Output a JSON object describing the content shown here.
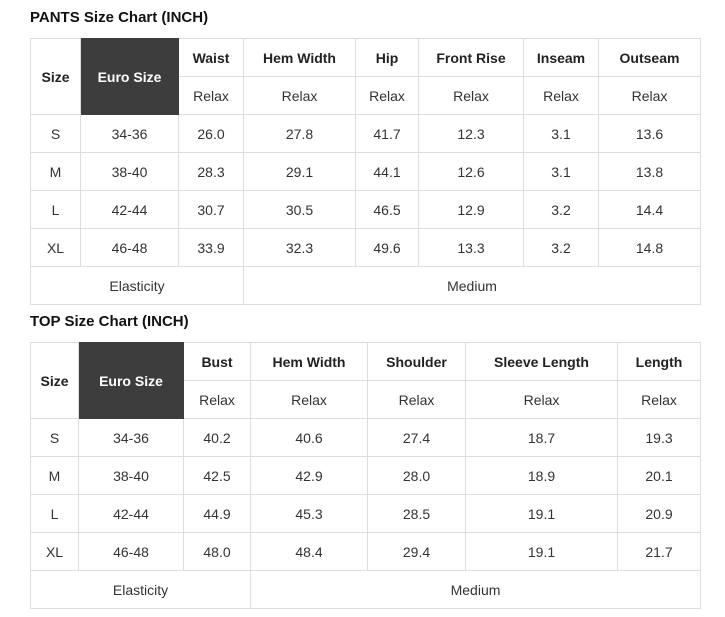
{
  "colors": {
    "accent_dark": "#3d3d3d",
    "accent_text": "#ffffff",
    "border": "#dddddd",
    "text": "#333333",
    "header_text": "#222222",
    "title_text": "#111111"
  },
  "pants": {
    "title": "PANTS Size Chart (INCH)",
    "size_header": "Size",
    "euro_header": "Euro Size",
    "fit_label": "Relax",
    "columns": [
      "Waist",
      "Hem Width",
      "Hip",
      "Front Rise",
      "Inseam",
      "Outseam"
    ],
    "rows": [
      {
        "size": "S",
        "euro": "34-36",
        "values": [
          "26.0",
          "27.8",
          "41.7",
          "12.3",
          "3.1",
          "13.6"
        ]
      },
      {
        "size": "M",
        "euro": "38-40",
        "values": [
          "28.3",
          "29.1",
          "44.1",
          "12.6",
          "3.1",
          "13.8"
        ]
      },
      {
        "size": "L",
        "euro": "42-44",
        "values": [
          "30.7",
          "30.5",
          "46.5",
          "12.9",
          "3.2",
          "14.4"
        ]
      },
      {
        "size": "XL",
        "euro": "46-48",
        "values": [
          "33.9",
          "32.3",
          "49.6",
          "13.3",
          "3.2",
          "14.8"
        ]
      }
    ],
    "footer": {
      "label": "Elasticity",
      "value": "Medium"
    }
  },
  "top": {
    "title": "TOP Size Chart (INCH)",
    "size_header": "Size",
    "euro_header": "Euro Size",
    "fit_label": "Relax",
    "columns": [
      "Bust",
      "Hem Width",
      "Shoulder",
      "Sleeve Length",
      "Length"
    ],
    "rows": [
      {
        "size": "S",
        "euro": "34-36",
        "values": [
          "40.2",
          "40.6",
          "27.4",
          "18.7",
          "19.3"
        ]
      },
      {
        "size": "M",
        "euro": "38-40",
        "values": [
          "42.5",
          "42.9",
          "28.0",
          "18.9",
          "20.1"
        ]
      },
      {
        "size": "L",
        "euro": "42-44",
        "values": [
          "44.9",
          "45.3",
          "28.5",
          "19.1",
          "20.9"
        ]
      },
      {
        "size": "XL",
        "euro": "46-48",
        "values": [
          "48.0",
          "48.4",
          "29.4",
          "19.1",
          "21.7"
        ]
      }
    ],
    "footer": {
      "label": "Elasticity",
      "value": "Medium"
    }
  }
}
